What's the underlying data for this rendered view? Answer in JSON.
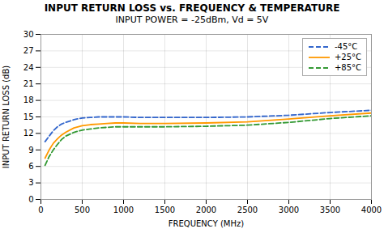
{
  "chart_data": {
    "type": "line",
    "title": "INPUT RETURN LOSS  vs. FREQUENCY & TEMPERATURE",
    "subtitle": "INPUT POWER = -25dBm, Vd = 5V",
    "x_label": "FREQUENCY (MHz)",
    "y_label": "INPUT RETURN LOSS (dB)",
    "xlim": [
      0,
      4000
    ],
    "ylim": [
      0,
      30
    ],
    "xticks": [
      0,
      500,
      1000,
      1500,
      2000,
      2500,
      3000,
      3500,
      4000
    ],
    "yticks": [
      0,
      3,
      6,
      9,
      12,
      15,
      18,
      21,
      24,
      27,
      30
    ],
    "grid": true,
    "legend": "upper right",
    "x": [
      50,
      100,
      150,
      200,
      250,
      300,
      400,
      500,
      600,
      700,
      800,
      900,
      1000,
      1200,
      1500,
      2000,
      2500,
      3000,
      3500,
      4000
    ],
    "series": [
      {
        "name": "-45°C",
        "color": "#3366cc",
        "line_style": "dashed",
        "values": [
          10.5,
          11.5,
          12.5,
          13.2,
          13.7,
          14.0,
          14.5,
          14.8,
          14.9,
          15.0,
          15.0,
          15.0,
          15.0,
          14.9,
          14.9,
          14.9,
          15.0,
          15.3,
          15.8,
          16.2
        ]
      },
      {
        "name": "+25°C",
        "color": "#ff9900",
        "line_style": "solid",
        "values": [
          7.5,
          9.0,
          10.2,
          11.0,
          11.7,
          12.2,
          13.0,
          13.4,
          13.6,
          13.7,
          13.8,
          13.9,
          13.9,
          13.8,
          13.8,
          13.9,
          14.1,
          14.6,
          15.2,
          15.7
        ]
      },
      {
        "name": "+85°C",
        "color": "#339933",
        "line_style": "dashed",
        "values": [
          6.2,
          7.8,
          9.0,
          10.0,
          10.9,
          11.5,
          12.2,
          12.6,
          12.8,
          13.0,
          13.1,
          13.2,
          13.2,
          13.2,
          13.2,
          13.3,
          13.5,
          14.0,
          14.7,
          15.2
        ]
      }
    ]
  }
}
